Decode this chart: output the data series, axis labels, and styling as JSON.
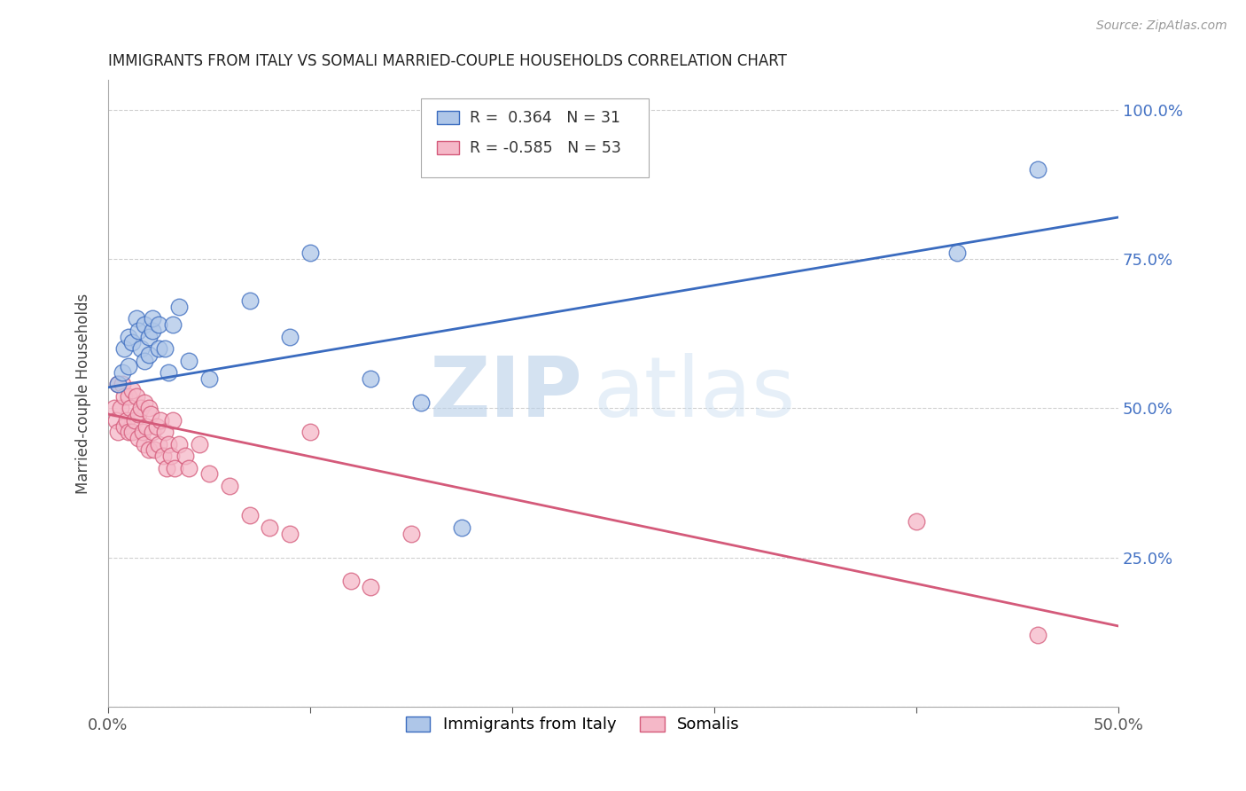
{
  "title": "IMMIGRANTS FROM ITALY VS SOMALI MARRIED-COUPLE HOUSEHOLDS CORRELATION CHART",
  "source": "Source: ZipAtlas.com",
  "ylabel": "Married-couple Households",
  "xmin": 0.0,
  "xmax": 0.5,
  "ymin": 0.0,
  "ymax": 1.05,
  "yticks": [
    0.0,
    0.25,
    0.5,
    0.75,
    1.0
  ],
  "ytick_labels": [
    "",
    "25.0%",
    "50.0%",
    "75.0%",
    "100.0%"
  ],
  "xticks": [
    0.0,
    0.1,
    0.2,
    0.3,
    0.4,
    0.5
  ],
  "xtick_labels": [
    "0.0%",
    "",
    "",
    "",
    "",
    "50.0%"
  ],
  "legend_r_blue": "0.364",
  "legend_n_blue": "31",
  "legend_r_pink": "-0.585",
  "legend_n_pink": "53",
  "blue_color": "#aec6e8",
  "blue_line_color": "#3a6bbf",
  "pink_color": "#f5b8c8",
  "pink_line_color": "#d45a7a",
  "blue_scatter_x": [
    0.005,
    0.007,
    0.008,
    0.01,
    0.01,
    0.012,
    0.014,
    0.015,
    0.016,
    0.018,
    0.018,
    0.02,
    0.02,
    0.022,
    0.022,
    0.025,
    0.025,
    0.028,
    0.03,
    0.032,
    0.035,
    0.04,
    0.05,
    0.07,
    0.09,
    0.1,
    0.13,
    0.155,
    0.175,
    0.42,
    0.46
  ],
  "blue_scatter_y": [
    0.54,
    0.56,
    0.6,
    0.57,
    0.62,
    0.61,
    0.65,
    0.63,
    0.6,
    0.64,
    0.58,
    0.62,
    0.59,
    0.63,
    0.65,
    0.6,
    0.64,
    0.6,
    0.56,
    0.64,
    0.67,
    0.58,
    0.55,
    0.68,
    0.62,
    0.76,
    0.55,
    0.51,
    0.3,
    0.76,
    0.9
  ],
  "pink_scatter_x": [
    0.003,
    0.004,
    0.005,
    0.005,
    0.006,
    0.007,
    0.008,
    0.008,
    0.009,
    0.01,
    0.01,
    0.011,
    0.012,
    0.012,
    0.013,
    0.014,
    0.015,
    0.015,
    0.016,
    0.017,
    0.018,
    0.018,
    0.019,
    0.02,
    0.02,
    0.021,
    0.022,
    0.023,
    0.024,
    0.025,
    0.026,
    0.027,
    0.028,
    0.029,
    0.03,
    0.031,
    0.032,
    0.033,
    0.035,
    0.038,
    0.04,
    0.045,
    0.05,
    0.06,
    0.07,
    0.08,
    0.09,
    0.1,
    0.12,
    0.13,
    0.15,
    0.4,
    0.46
  ],
  "pink_scatter_y": [
    0.5,
    0.48,
    0.54,
    0.46,
    0.5,
    0.54,
    0.52,
    0.47,
    0.48,
    0.52,
    0.46,
    0.5,
    0.53,
    0.46,
    0.48,
    0.52,
    0.49,
    0.45,
    0.5,
    0.46,
    0.51,
    0.44,
    0.47,
    0.5,
    0.43,
    0.49,
    0.46,
    0.43,
    0.47,
    0.44,
    0.48,
    0.42,
    0.46,
    0.4,
    0.44,
    0.42,
    0.48,
    0.4,
    0.44,
    0.42,
    0.4,
    0.44,
    0.39,
    0.37,
    0.32,
    0.3,
    0.29,
    0.46,
    0.21,
    0.2,
    0.29,
    0.31,
    0.12
  ],
  "blue_trend_x": [
    0.0,
    0.5
  ],
  "blue_trend_y": [
    0.535,
    0.82
  ],
  "pink_trend_x": [
    0.0,
    0.5
  ],
  "pink_trend_y": [
    0.49,
    0.135
  ],
  "watermark_zip": "ZIP",
  "watermark_atlas": "atlas",
  "background_color": "#ffffff",
  "grid_color": "#d0d0d0"
}
